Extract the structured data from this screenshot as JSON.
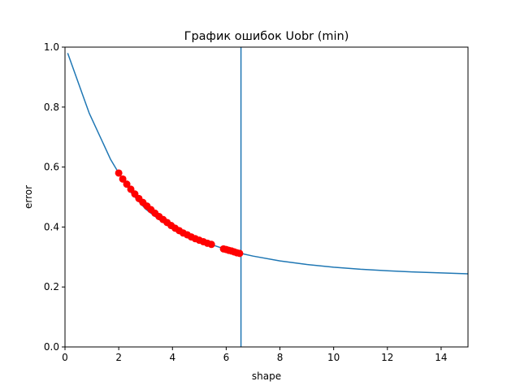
{
  "chart_data": {
    "type": "line",
    "title": "График ошибок Uobr (min)",
    "xlabel": "shape",
    "ylabel": "error",
    "xlim": [
      0,
      15
    ],
    "ylim": [
      0,
      1.0
    ],
    "xticks": [
      0,
      2,
      4,
      6,
      8,
      10,
      12,
      14
    ],
    "yticks": [
      0.0,
      0.2,
      0.4,
      0.6,
      0.8,
      1.0
    ],
    "xtick_labels": [
      "0",
      "2",
      "4",
      "6",
      "8",
      "10",
      "12",
      "14"
    ],
    "ytick_labels": [
      "0.0",
      "0.2",
      "0.4",
      "0.6",
      "0.8",
      "1.0"
    ],
    "grid": false,
    "colors": {
      "line": "#1f77b4",
      "markers": "#ff0000",
      "vline": "#1f77b4"
    },
    "series": [
      {
        "kind": "line",
        "x": [
          0.1,
          0.9,
          1.7,
          2.0,
          2.5,
          3.0,
          3.5,
          4.0,
          4.5,
          5.0,
          5.5,
          6.0,
          6.55,
          7.0,
          8.0,
          9.0,
          10.0,
          11.0,
          12.0,
          13.0,
          14.0,
          15.0
        ],
        "y": [
          0.98,
          0.78,
          0.625,
          0.58,
          0.51,
          0.46,
          0.425,
          0.395,
          0.372,
          0.355,
          0.34,
          0.325,
          0.312,
          0.303,
          0.287,
          0.275,
          0.266,
          0.259,
          0.254,
          0.25,
          0.247,
          0.244
        ]
      },
      {
        "kind": "scatter",
        "x": [
          2.0,
          2.15,
          2.3,
          2.45,
          2.6,
          2.75,
          2.9,
          3.05,
          3.2,
          3.35,
          3.5,
          3.65,
          3.8,
          3.95,
          4.1,
          4.25,
          4.4,
          4.55,
          4.7,
          4.85,
          5.0,
          5.15,
          5.3,
          5.45,
          5.9,
          6.0,
          6.1,
          6.2,
          6.3,
          6.4,
          6.5
        ],
        "y": [
          0.58,
          0.56,
          0.543,
          0.526,
          0.51,
          0.495,
          0.482,
          0.47,
          0.458,
          0.446,
          0.435,
          0.425,
          0.415,
          0.405,
          0.396,
          0.388,
          0.38,
          0.374,
          0.367,
          0.361,
          0.356,
          0.351,
          0.346,
          0.342,
          0.327,
          0.325,
          0.322,
          0.32,
          0.317,
          0.314,
          0.312
        ]
      },
      {
        "kind": "vline",
        "x": 6.55
      }
    ]
  }
}
